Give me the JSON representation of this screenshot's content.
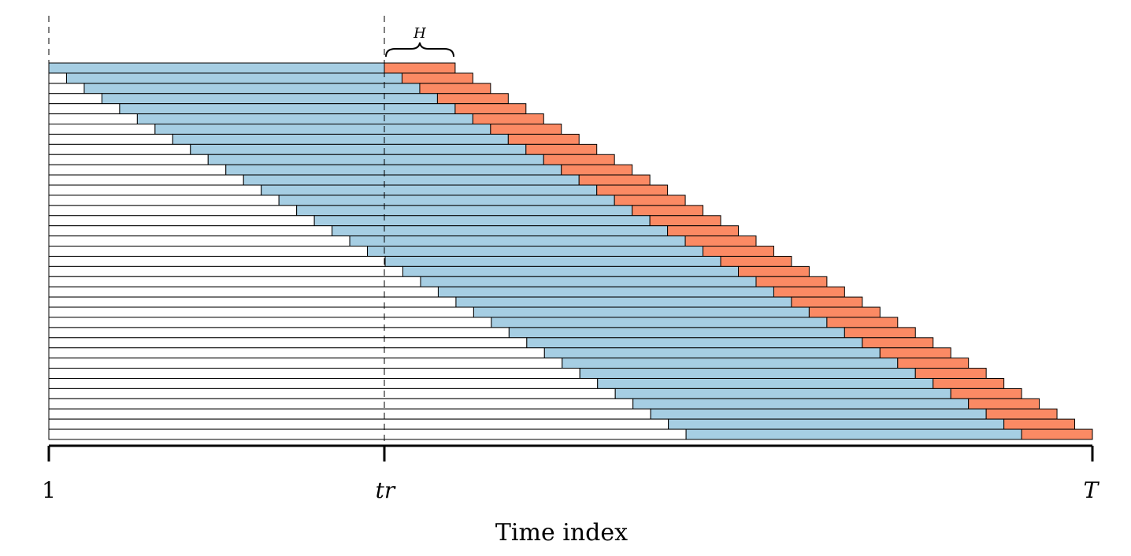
{
  "diagram": {
    "x_axis": {
      "label": "Time index",
      "ticks": [
        {
          "key": "start",
          "label": "1"
        },
        {
          "key": "split",
          "label": "tr"
        },
        {
          "key": "end",
          "label": "T"
        }
      ]
    },
    "horizon_label": "H",
    "window_count": 37,
    "horizon_steps": 4,
    "colors": {
      "training": "#a6cee3",
      "forecast": "#fb8a64",
      "unused": "#ffffff",
      "outline": "#000000"
    }
  }
}
